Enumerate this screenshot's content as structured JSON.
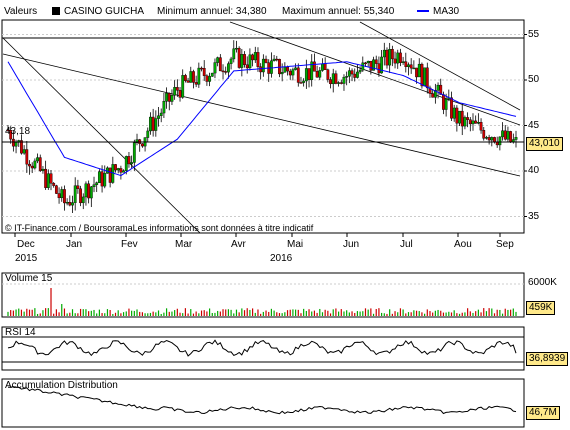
{
  "header": {
    "valeurs_label": "Valeurs",
    "stock_name": "CASINO GUICHA",
    "min_label": "Minimum annuel: 34,380",
    "max_label": "Maximum annuel: 55,340",
    "ma_label": "MA30"
  },
  "price_axis": {
    "ticks": [
      "55",
      "50",
      "45",
      "40",
      "35"
    ],
    "left_label": "43,18",
    "last_value": "43,010"
  },
  "month_labels": [
    "Dec",
    "Jan",
    "Fev",
    "Mar",
    "Avr",
    "Mai",
    "Jun",
    "Jul",
    "Aou",
    "Sep"
  ],
  "year_labels": [
    "2015",
    "2016"
  ],
  "credit": "© IT-Finance.com / BoursoramaLes informations sont données à titre indicatif",
  "volume": {
    "title": "Volume 15",
    "tick": "6000K",
    "last_value": "459K"
  },
  "rsi": {
    "title": "RSI 14",
    "last_value": "36,8939"
  },
  "accumulation": {
    "title": "Accumulation Distribution",
    "last_value": "46,7M"
  },
  "colors": {
    "up": "#00aa00",
    "down": "#cc0000",
    "ma": "#0000ff",
    "line": "#000000",
    "value_bg": "#ffe98a",
    "grid": "#cccccc"
  },
  "chart_data": {
    "type": "line",
    "title": "CASINO GUICHA",
    "x": [
      "2015-12",
      "2016-01",
      "2016-02",
      "2016-03",
      "2016-04",
      "2016-05",
      "2016-06",
      "2016-07",
      "2016-08",
      "2016-09"
    ],
    "price_close": [
      44.5,
      36.5,
      40.5,
      49.0,
      52.5,
      51.0,
      50.5,
      53.0,
      45.5,
      43.01
    ],
    "ma30": [
      52.0,
      41.5,
      39.5,
      43.5,
      51.0,
      51.5,
      52.0,
      50.5,
      47.5,
      46.0
    ],
    "ylim": [
      33,
      57
    ],
    "horizontal_line": 43.18,
    "volume_last": 459,
    "rsi_last": 36.8939,
    "acc_dist_last": 46.7,
    "grid": true
  }
}
